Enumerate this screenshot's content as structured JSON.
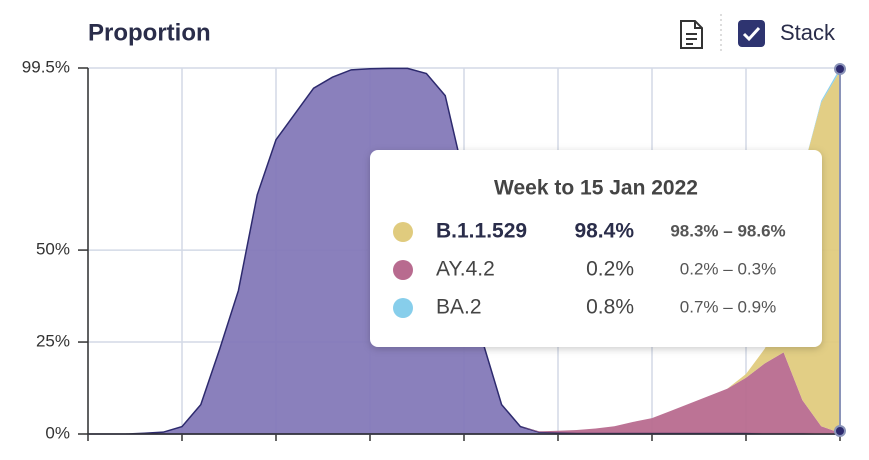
{
  "header": {
    "title": "Proportion",
    "stack_label": "Stack"
  },
  "chart_data": {
    "type": "area",
    "stacked": true,
    "categories": [
      null,
      null,
      null,
      null,
      null,
      null,
      null,
      null,
      null,
      null,
      null,
      null,
      null,
      null,
      null,
      null,
      null,
      null,
      null,
      null,
      null,
      null,
      null,
      null,
      null,
      null,
      null,
      null,
      null,
      null,
      null,
      null,
      null,
      null,
      null,
      null,
      null,
      null,
      null,
      null,
      null
    ],
    "series": [
      {
        "name": null,
        "color": "#8479b8",
        "values": [
          0,
          0,
          0,
          0.2,
          0.5,
          2,
          8,
          23,
          39,
          65,
          80,
          87,
          94,
          97,
          99,
          99.3,
          99.4,
          99.4,
          98,
          92,
          70,
          25,
          8,
          2,
          0.5,
          0.4,
          0.3,
          0.3,
          0.3,
          0.3,
          0.3,
          0.3,
          0.3,
          0.3,
          0.3,
          0.3,
          0.2,
          0.2,
          0.2,
          0.1,
          0.1
        ]
      },
      {
        "name": "AY.4.2",
        "color": "#b86b8f",
        "values": [
          0,
          0,
          0,
          0,
          0,
          0,
          0,
          0,
          0,
          0,
          0,
          0,
          0,
          0,
          0,
          0,
          0,
          0,
          0,
          0,
          0,
          0,
          0,
          0,
          0.2,
          0.5,
          0.8,
          1.2,
          1.8,
          3,
          4,
          6,
          8,
          10,
          12,
          15,
          19,
          22,
          9,
          2,
          0.2
        ]
      },
      {
        "name": "B.1.1.529",
        "color": "#e0cb7e",
        "values": [
          0,
          0,
          0,
          0,
          0,
          0,
          0,
          0,
          0,
          0,
          0,
          0,
          0,
          0,
          0,
          0,
          0,
          0,
          0,
          0,
          0,
          0,
          0,
          0,
          0,
          0,
          0,
          0,
          0,
          0,
          0,
          0,
          0,
          0,
          0,
          1,
          4,
          12,
          62,
          88,
          98.4
        ]
      },
      {
        "name": "BA.2",
        "color": "#87ceeb",
        "values": [
          0,
          0,
          0,
          0,
          0,
          0,
          0,
          0,
          0,
          0,
          0,
          0,
          0,
          0,
          0,
          0,
          0,
          0,
          0,
          0,
          0,
          0,
          0,
          0,
          0,
          0,
          0,
          0,
          0,
          0,
          0,
          0,
          0,
          0,
          0,
          0,
          0,
          0,
          0,
          0.5,
          0.8
        ]
      }
    ],
    "ylim": [
      0,
      99.5
    ],
    "yticks": [
      {
        "value": 0,
        "label": "0%"
      },
      {
        "value": 25,
        "label": "25%"
      },
      {
        "value": 50,
        "label": "50%"
      },
      {
        "value": 99.5,
        "label": "99.5%"
      }
    ],
    "grid": true,
    "tooltip": {
      "title": "Week to 15 Jan 2022",
      "rows": [
        {
          "value": "98.4%",
          "range": "98.3% – 98.6%"
        },
        {
          "value": "0.2%",
          "range": "0.2% – 0.3%"
        },
        {
          "value": "0.8%",
          "range": "0.7% – 0.9%"
        }
      ]
    }
  }
}
